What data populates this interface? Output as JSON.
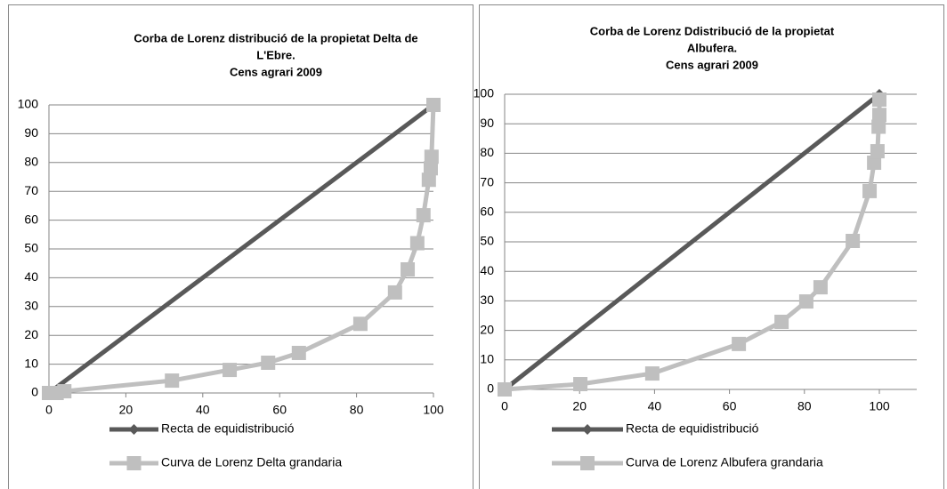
{
  "chart_data": [
    {
      "type": "line",
      "title": [
        "Corba de Lorenz distribució de la propietat Delta de",
        "L'Ebre.",
        "Cens agrari 2009"
      ],
      "xlim": [
        0,
        100
      ],
      "xticks": [
        0,
        20,
        40,
        60,
        80,
        100
      ],
      "ylim": [
        0,
        100
      ],
      "yticks": [
        0,
        10,
        20,
        30,
        40,
        50,
        60,
        70,
        80,
        90,
        100
      ],
      "grid": true,
      "legend": "bottom",
      "series": [
        {
          "name": "Recta de equidistribució",
          "color": "#595959",
          "marker": "diamond",
          "x": [
            0,
            100
          ],
          "values": [
            0,
            100
          ]
        },
        {
          "name": "Curva de Lorenz Delta grandaria",
          "color": "#bfbfbf",
          "marker": "square",
          "x": [
            0,
            2,
            4,
            32,
            47,
            57,
            65,
            81,
            90,
            93.3,
            95.8,
            97.4,
            98.8,
            99.3,
            99.5,
            100
          ],
          "values": [
            0,
            0,
            0.6,
            4.3,
            8,
            10.5,
            13.9,
            24,
            34.9,
            42.9,
            52,
            61.7,
            74,
            78,
            82,
            100
          ]
        }
      ]
    },
    {
      "type": "line",
      "title": [
        "Corba de Lorenz Ddistribució de la propietat",
        "Albufera.",
        "Cens agrari 2009"
      ],
      "xlim": [
        0,
        100
      ],
      "xticks": [
        0,
        20,
        40,
        60,
        80,
        100
      ],
      "ylim": [
        0,
        100
      ],
      "yticks": [
        0,
        10,
        20,
        30,
        40,
        50,
        60,
        70,
        80,
        90,
        100
      ],
      "grid": true,
      "legend": "bottom",
      "series": [
        {
          "name": "Recta de equidistribució",
          "color": "#595959",
          "marker": "diamond",
          "x": [
            0,
            100
          ],
          "values": [
            0,
            100
          ]
        },
        {
          "name": "Curva de Lorenz Albufera grandaria",
          "color": "#bfbfbf",
          "marker": "square",
          "x": [
            0,
            20.2,
            39.4,
            62.5,
            73.9,
            80.5,
            84.3,
            92.9,
            97.4,
            98.6,
            99.5,
            99.8,
            100,
            100
          ],
          "values": [
            0,
            1.8,
            5.4,
            15.4,
            22.9,
            29.8,
            34.6,
            50.3,
            67.2,
            76.8,
            80.7,
            89,
            93,
            98.2
          ]
        }
      ]
    }
  ]
}
